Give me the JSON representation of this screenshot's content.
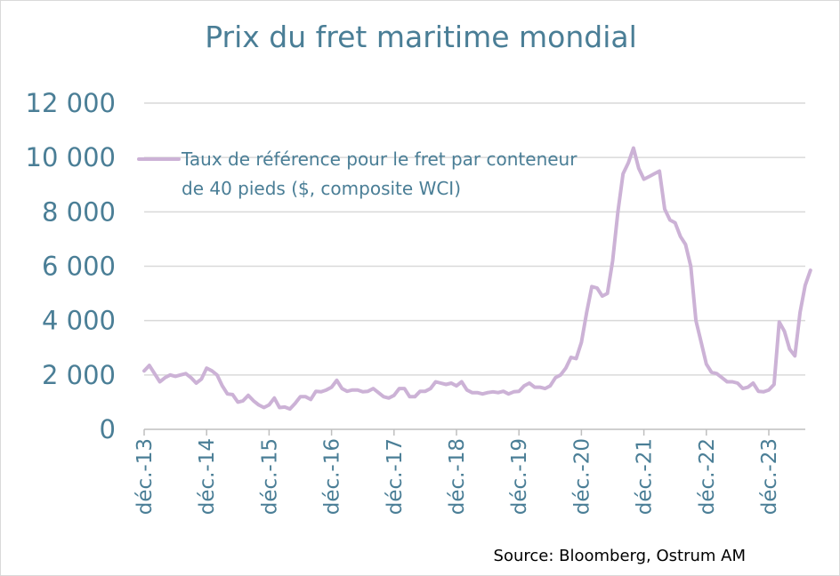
{
  "chart_data": {
    "type": "line",
    "title": "Prix du fret maritime mondial",
    "source": "Source: Bloomberg, Ostrum AM",
    "legend": {
      "line1": "Taux de référence pour le fret par conteneur",
      "line2": "de 40 pieds ($, composite WCI)",
      "placement": "top-left"
    },
    "ylim": [
      0,
      12000
    ],
    "yticks": [
      0,
      2000,
      4000,
      6000,
      8000,
      10000,
      12000
    ],
    "ytick_labels": [
      "0",
      "2 000",
      "4 000",
      "6 000",
      "8 000",
      "10 000",
      "12 000"
    ],
    "xtick_labels": [
      "déc.-13",
      "déc.-14",
      "déc.-15",
      "déc.-16",
      "déc.-17",
      "déc.-18",
      "déc.-19",
      "déc.-20",
      "déc.-21",
      "déc.-22",
      "déc.-23"
    ],
    "x_start": "2013-12",
    "x_end": "2024-08",
    "grid": true,
    "series_color": "#ccb2d6",
    "series": [
      {
        "name": "Taux de référence pour le fret par conteneur de 40 pieds ($, composite WCI)",
        "values": [
          2150,
          2350,
          2050,
          1750,
          1900,
          2000,
          1950,
          2000,
          2050,
          1900,
          1700,
          1850,
          2250,
          2150,
          2000,
          1600,
          1300,
          1280,
          1000,
          1050,
          1250,
          1050,
          900,
          800,
          900,
          1150,
          800,
          820,
          750,
          950,
          1200,
          1200,
          1100,
          1400,
          1380,
          1450,
          1550,
          1800,
          1500,
          1400,
          1450,
          1450,
          1380,
          1400,
          1500,
          1350,
          1200,
          1150,
          1250,
          1500,
          1500,
          1200,
          1200,
          1400,
          1400,
          1500,
          1750,
          1700,
          1650,
          1700,
          1600,
          1750,
          1450,
          1350,
          1350,
          1300,
          1350,
          1380,
          1350,
          1400,
          1300,
          1380,
          1400,
          1600,
          1700,
          1550,
          1550,
          1500,
          1600,
          1900,
          2000,
          2250,
          2650,
          2600,
          3200,
          4300,
          5250,
          5200,
          4900,
          5000,
          6200,
          8000,
          9400,
          9800,
          10350,
          9600,
          9200,
          9300,
          9400,
          9500,
          8100,
          7700,
          7600,
          7100,
          6800,
          6000,
          4000,
          3200,
          2400,
          2100,
          2050,
          1900,
          1750,
          1750,
          1700,
          1500,
          1550,
          1700,
          1400,
          1380,
          1450,
          1650,
          3950,
          3600,
          2950,
          2700,
          4300,
          5300,
          5850
        ]
      }
    ]
  }
}
